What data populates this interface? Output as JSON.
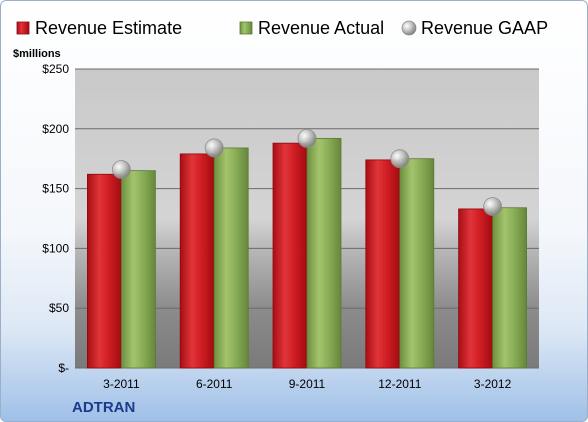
{
  "chart_data": {
    "type": "bar",
    "categories": [
      "3-2011",
      "6-2011",
      "9-2011",
      "12-2011",
      "3-2012"
    ],
    "series": [
      {
        "name": "Revenue Estimate",
        "values": [
          162,
          179,
          188,
          174,
          133
        ],
        "color": "#d8262b"
      },
      {
        "name": "Revenue Actual",
        "values": [
          165,
          184,
          192,
          175,
          134
        ],
        "color": "#8cb05a"
      },
      {
        "name": "Revenue GAAP",
        "values": [
          166,
          184,
          192,
          175,
          135
        ],
        "color": "#c0c0c0",
        "marker": "sphere"
      }
    ],
    "ylabel": "$millions",
    "ylim": [
      0,
      250
    ],
    "yticks": [
      0,
      50,
      100,
      150,
      200,
      250
    ],
    "ytick_labels": [
      "$-",
      "$50",
      "$100",
      "$150",
      "$200",
      "$250"
    ],
    "grid": true,
    "legend_position": "top",
    "company": "ADTRAN"
  }
}
